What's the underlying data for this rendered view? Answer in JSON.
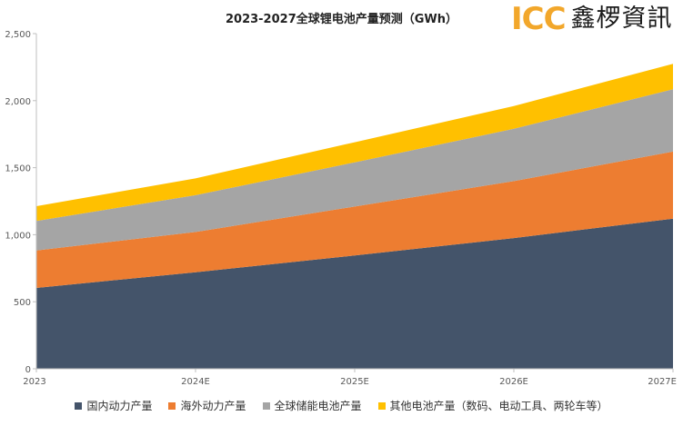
{
  "logo": {
    "text_latin": "ICC",
    "text_cn": "鑫椤資訊"
  },
  "chart_data": {
    "type": "area",
    "stacked": true,
    "title": "2023-2027全球锂电池产量预测（GWh）",
    "categories": [
      "2023",
      "2024E",
      "2025E",
      "2026E",
      "2027E"
    ],
    "ylim": [
      0,
      2500
    ],
    "yticks": [
      0,
      500,
      1000,
      1500,
      2000,
      2500
    ],
    "ytick_labels": [
      "0",
      "500",
      "1,000",
      "1,500",
      "2,000",
      "2,500"
    ],
    "grid": false,
    "legend_position": "bottom",
    "series": [
      {
        "name": "国内动力产量",
        "color": "#44546a",
        "values": [
          603,
          720,
          845,
          975,
          1120
        ]
      },
      {
        "name": "海外动力产量",
        "color": "#ed7d31",
        "values": [
          280,
          300,
          365,
          425,
          500
        ]
      },
      {
        "name": "全球储能电池产量",
        "color": "#a5a5a5",
        "values": [
          220,
          275,
          330,
          390,
          465
        ]
      },
      {
        "name": "其他电池产量（数码、电动工具、两轮车等）",
        "color": "#ffc000",
        "values": [
          110,
          125,
          150,
          170,
          190
        ]
      }
    ]
  }
}
